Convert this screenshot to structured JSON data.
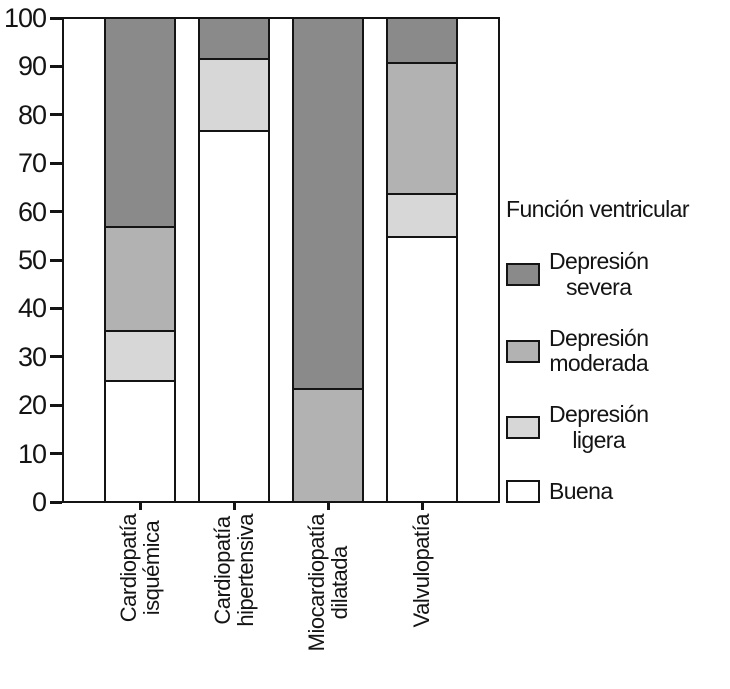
{
  "chart_data": {
    "type": "bar",
    "stacked": true,
    "title": "",
    "xlabel": "",
    "ylabel": "",
    "ylim": [
      0,
      100
    ],
    "yticks": [
      0,
      10,
      20,
      30,
      40,
      50,
      60,
      70,
      80,
      90,
      100
    ],
    "grid": false,
    "categories": [
      "Cardiopatía\nisquémica",
      "Cardiopatía\nhipertensiva",
      "Miocardiopatía\ndilatada",
      "Valvulopatía"
    ],
    "series": [
      {
        "key": "buena",
        "name": "Buena",
        "color": "#ffffff",
        "values": [
          25,
          77,
          0,
          55
        ]
      },
      {
        "key": "ligera",
        "name": "Depresión ligera",
        "color": "#d7d7d7",
        "values": [
          10.5,
          15,
          0,
          9
        ]
      },
      {
        "key": "moderada",
        "name": "Depresión moderada",
        "color": "#b2b2b2",
        "values": [
          21.5,
          0,
          23.5,
          27
        ]
      },
      {
        "key": "severa",
        "name": "Depresión severa",
        "color": "#8a8a8a",
        "values": [
          43,
          8,
          76.5,
          9
        ]
      }
    ],
    "legend_position": "right",
    "legend_title": "Función ventricular",
    "legend_items": [
      {
        "key": "severa",
        "label": "Depresión\nsevera",
        "color": "#8a8a8a"
      },
      {
        "key": "moderada",
        "label": "Depresión\nmoderada",
        "color": "#b2b2b2"
      },
      {
        "key": "ligera",
        "label": "Depresión\nligera",
        "color": "#d7d7d7"
      },
      {
        "key": "buena",
        "label": "Buena",
        "color": "#ffffff"
      }
    ]
  },
  "colors": {
    "axis": "#141414",
    "text": "#141414",
    "background": "#ffffff"
  }
}
